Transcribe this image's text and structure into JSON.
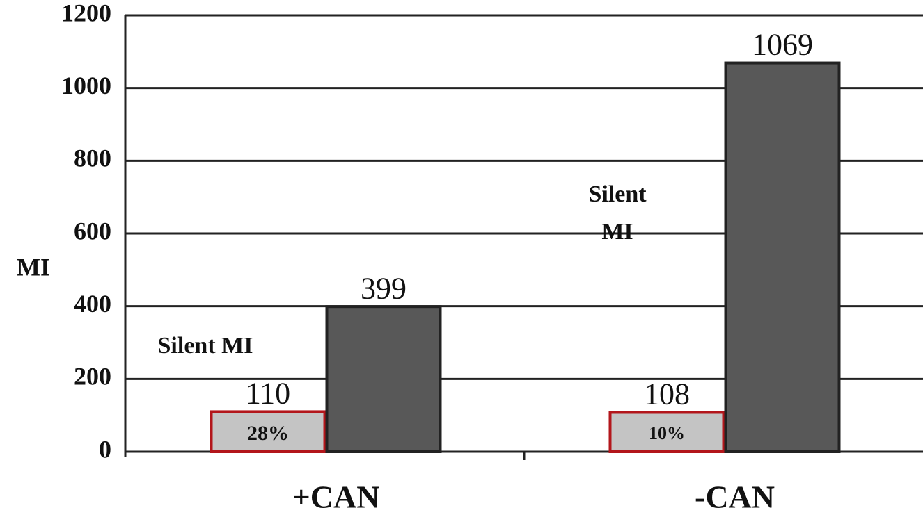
{
  "chart_data": {
    "type": "bar",
    "y_label": "MI",
    "categories": [
      "+CAN",
      "-CAN"
    ],
    "series": [
      {
        "color": "#c4c4c4",
        "border": "#b3161b",
        "values": [
          110,
          108
        ]
      },
      {
        "color": "#585858",
        "border": "#222222",
        "values": [
          399,
          1069
        ]
      }
    ],
    "bar_notes": [
      "28%",
      "10%"
    ],
    "annotations": [
      "Silent MI",
      "Silent",
      "MI"
    ],
    "ylim": [
      0,
      1200
    ],
    "yticks": [
      0,
      200,
      400,
      600,
      800,
      1000,
      1200
    ],
    "grid": true
  }
}
